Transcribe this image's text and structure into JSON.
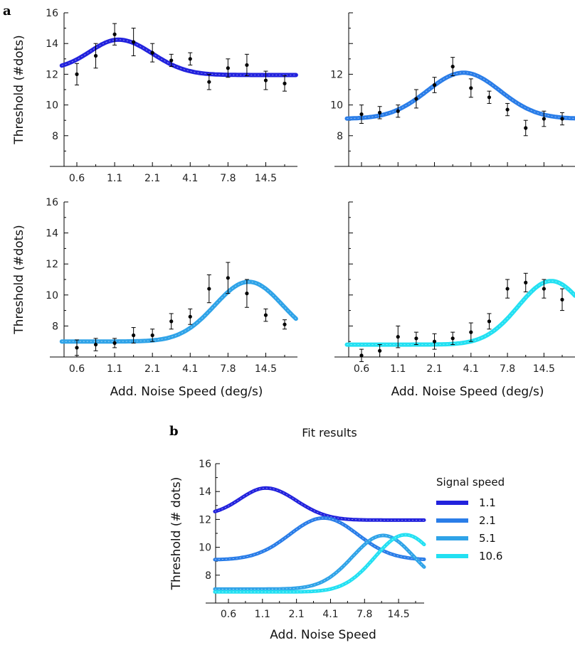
{
  "figure": {
    "panel_a_letter": "a",
    "panel_b_letter": "b"
  },
  "chart_data": [
    {
      "type": "line",
      "panel": "a-top-left",
      "ylabel": "Threshold (#dots)",
      "xlabel": "",
      "ylim": [
        6,
        16
      ],
      "yticks": [
        8,
        10,
        12,
        14,
        16
      ],
      "xtick_labels": [
        "0.6",
        "1.1",
        "2.1",
        "4.1",
        "7.8",
        "14.5"
      ],
      "color": "#2222dd",
      "fit": {
        "base": 11.95,
        "amp": 2.3,
        "mu": 1.7,
        "sigma": 0.9,
        "cut_below": 1.7,
        "xmin": 0.0,
        "xmax": 7.0
      },
      "points": [
        {
          "x": 0.6,
          "y": 12.0,
          "err": 0.7
        },
        {
          "x": 1.1,
          "y": 13.2,
          "err": 0.8
        },
        {
          "x": 1.6,
          "y": 14.6,
          "err": 0.7
        },
        {
          "x": 2.1,
          "y": 14.1,
          "err": 0.9
        },
        {
          "x": 2.6,
          "y": 13.4,
          "err": 0.6
        },
        {
          "x": 3.1,
          "y": 12.9,
          "err": 0.4
        },
        {
          "x": 3.6,
          "y": 13.0,
          "err": 0.4
        },
        {
          "x": 4.1,
          "y": 11.5,
          "err": 0.5
        },
        {
          "x": 4.6,
          "y": 12.4,
          "err": 0.6
        },
        {
          "x": 5.1,
          "y": 12.6,
          "err": 0.7
        },
        {
          "x": 5.6,
          "y": 11.6,
          "err": 0.6
        },
        {
          "x": 6.1,
          "y": 11.4,
          "err": 0.5
        }
      ]
    },
    {
      "type": "line",
      "panel": "a-top-right",
      "ylabel": "",
      "xlabel": "",
      "ylim": [
        6,
        16
      ],
      "yticks": [
        8,
        10,
        12
      ],
      "xtick_labels": [],
      "color": "#2a7de8",
      "fit": {
        "base": 9.1,
        "amp": 3.0,
        "mu": 3.4,
        "sigma": 1.0,
        "cut_below": null,
        "xmin": 0.0,
        "xmax": 7.0
      },
      "points": [
        {
          "x": 0.6,
          "y": 9.4,
          "err": 0.6
        },
        {
          "x": 1.1,
          "y": 9.5,
          "err": 0.4
        },
        {
          "x": 1.6,
          "y": 9.6,
          "err": 0.4
        },
        {
          "x": 2.1,
          "y": 10.4,
          "err": 0.6
        },
        {
          "x": 2.6,
          "y": 11.3,
          "err": 0.5
        },
        {
          "x": 3.1,
          "y": 12.5,
          "err": 0.6
        },
        {
          "x": 3.6,
          "y": 11.1,
          "err": 0.6
        },
        {
          "x": 4.1,
          "y": 10.5,
          "err": 0.4
        },
        {
          "x": 4.6,
          "y": 9.7,
          "err": 0.4
        },
        {
          "x": 5.1,
          "y": 8.5,
          "err": 0.5
        },
        {
          "x": 5.6,
          "y": 9.1,
          "err": 0.5
        },
        {
          "x": 6.1,
          "y": 9.1,
          "err": 0.4
        }
      ]
    },
    {
      "type": "line",
      "panel": "a-bottom-left",
      "ylabel": "Threshold (#dots)",
      "xlabel": "Add. Noise Speed (deg/s)",
      "ylim": [
        6,
        16
      ],
      "yticks": [
        8,
        10,
        12,
        14,
        16
      ],
      "xtick_labels": [
        "0.6",
        "1.1",
        "2.1",
        "4.1",
        "7.8",
        "14.5"
      ],
      "color": "#2fa3e8",
      "fit": {
        "base": 7.0,
        "amp": 3.85,
        "mu": 5.15,
        "sigma": 0.9,
        "cut_below": null,
        "xmin": 0.0,
        "xmax": 7.0
      },
      "points": [
        {
          "x": 0.6,
          "y": 6.6,
          "err": 0.5
        },
        {
          "x": 1.1,
          "y": 6.8,
          "err": 0.4
        },
        {
          "x": 1.6,
          "y": 6.9,
          "err": 0.3
        },
        {
          "x": 2.1,
          "y": 7.4,
          "err": 0.5
        },
        {
          "x": 2.6,
          "y": 7.4,
          "err": 0.4
        },
        {
          "x": 3.1,
          "y": 8.3,
          "err": 0.5
        },
        {
          "x": 3.6,
          "y": 8.6,
          "err": 0.5
        },
        {
          "x": 4.1,
          "y": 10.4,
          "err": 0.9
        },
        {
          "x": 4.6,
          "y": 11.1,
          "err": 1.0
        },
        {
          "x": 5.1,
          "y": 10.1,
          "err": 0.9
        },
        {
          "x": 5.6,
          "y": 8.7,
          "err": 0.4
        },
        {
          "x": 6.1,
          "y": 8.1,
          "err": 0.3
        }
      ]
    },
    {
      "type": "line",
      "panel": "a-bottom-right",
      "ylabel": "",
      "xlabel": "Add. Noise Speed (deg/s)",
      "ylim": [
        6,
        16
      ],
      "yticks": [],
      "xtick_labels": [
        "0.6",
        "1.1",
        "2.1",
        "4.1",
        "7.8",
        "14.5"
      ],
      "color": "#22e0f2",
      "fit": {
        "base": 6.8,
        "amp": 4.1,
        "mu": 5.8,
        "sigma": 0.9,
        "cut_below": null,
        "xmin": 0.0,
        "xmax": 7.0
      },
      "points": [
        {
          "x": 0.6,
          "y": 6.1,
          "err": 0.4
        },
        {
          "x": 1.1,
          "y": 6.4,
          "err": 0.4
        },
        {
          "x": 1.6,
          "y": 7.3,
          "err": 0.7
        },
        {
          "x": 2.1,
          "y": 7.2,
          "err": 0.4
        },
        {
          "x": 2.6,
          "y": 7.0,
          "err": 0.5
        },
        {
          "x": 3.1,
          "y": 7.2,
          "err": 0.4
        },
        {
          "x": 3.6,
          "y": 7.6,
          "err": 0.6
        },
        {
          "x": 4.1,
          "y": 8.3,
          "err": 0.5
        },
        {
          "x": 4.6,
          "y": 10.4,
          "err": 0.6
        },
        {
          "x": 5.1,
          "y": 10.8,
          "err": 0.6
        },
        {
          "x": 5.6,
          "y": 10.4,
          "err": 0.6
        },
        {
          "x": 6.1,
          "y": 9.7,
          "err": 0.7
        }
      ]
    },
    {
      "type": "line",
      "panel": "b",
      "title": "Fit results",
      "ylabel": "Threshold (# dots)",
      "xlabel": "Add. Noise Speed",
      "ylim": [
        6,
        16
      ],
      "yticks": [
        8,
        10,
        12,
        14,
        16
      ],
      "xtick_labels": [
        "0.6",
        "1.1",
        "2.1",
        "4.1",
        "7.8",
        "14.5"
      ],
      "legend_title": "Signal speed",
      "legend_position": "right",
      "series": [
        {
          "name": "1.1",
          "color": "#2222dd",
          "fit": {
            "base": 11.95,
            "amp": 2.3,
            "mu": 1.7,
            "sigma": 0.9,
            "cut_below": 1.7
          }
        },
        {
          "name": "2.1",
          "color": "#2a7de8",
          "fit": {
            "base": 9.1,
            "amp": 3.0,
            "mu": 3.4,
            "sigma": 1.0,
            "cut_below": null
          }
        },
        {
          "name": "5.1",
          "color": "#2fa3e8",
          "fit": {
            "base": 7.0,
            "amp": 3.85,
            "mu": 5.15,
            "sigma": 0.9,
            "cut_below": null
          }
        },
        {
          "name": "10.6",
          "color": "#22e0f2",
          "fit": {
            "base": 6.8,
            "amp": 4.1,
            "mu": 5.8,
            "sigma": 0.9,
            "cut_below": null
          }
        }
      ]
    }
  ]
}
